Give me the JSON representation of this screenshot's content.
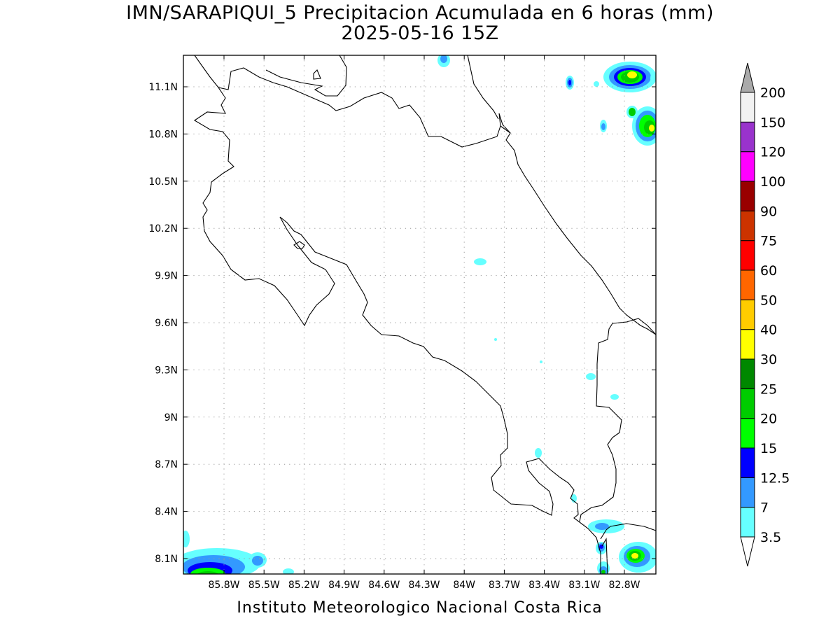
{
  "title": {
    "line1": "IMN/SARAPIQUI_5 Precipitacion Acumulada en 6 horas (mm)",
    "line2": "2025-05-16 15Z"
  },
  "footer": {
    "credit": "Instituto Meteorologico Nacional Costa Rica"
  },
  "map": {
    "lat_labels": [
      {
        "value": 11.1,
        "label": "11.1N"
      },
      {
        "value": 10.8,
        "label": "10.8N"
      },
      {
        "value": 10.5,
        "label": "10.5N"
      },
      {
        "value": 10.2,
        "label": "10.2N"
      },
      {
        "value": 9.9,
        "label": "9.9N"
      },
      {
        "value": 9.6,
        "label": "9.6N"
      },
      {
        "value": 9.3,
        "label": "9.3N"
      },
      {
        "value": 9.0,
        "label": "9N"
      },
      {
        "value": 8.7,
        "label": "8.7N"
      },
      {
        "value": 8.4,
        "label": "8.4N"
      },
      {
        "value": 8.1,
        "label": "8.1N"
      }
    ],
    "lon_labels": [
      {
        "value": -85.8,
        "label": "85.8W"
      },
      {
        "value": -85.5,
        "label": "85.5W"
      },
      {
        "value": -85.2,
        "label": "85.2W"
      },
      {
        "value": -84.9,
        "label": "84.9W"
      },
      {
        "value": -84.6,
        "label": "84.6W"
      },
      {
        "value": -84.3,
        "label": "84.3W"
      },
      {
        "value": -84.0,
        "label": "84W"
      },
      {
        "value": -83.7,
        "label": "83.7W"
      },
      {
        "value": -83.4,
        "label": "83.4W"
      },
      {
        "value": -83.1,
        "label": "83.1W"
      },
      {
        "value": -82.8,
        "label": "82.8W"
      }
    ]
  },
  "legend": {
    "unit": "mm",
    "levels": [
      {
        "label": "3.5",
        "color": "#66ffff"
      },
      {
        "label": "7",
        "color": "#3399ff"
      },
      {
        "label": "12.5",
        "color": "#0000ff"
      },
      {
        "label": "15",
        "color": "#00ff00"
      },
      {
        "label": "20",
        "color": "#00cc00"
      },
      {
        "label": "25",
        "color": "#008800"
      },
      {
        "label": "30",
        "color": "#ffff00"
      },
      {
        "label": "40",
        "color": "#ffcc00"
      },
      {
        "label": "50",
        "color": "#ff6600"
      },
      {
        "label": "60",
        "color": "#ff0000"
      },
      {
        "label": "75",
        "color": "#cc3300"
      },
      {
        "label": "90",
        "color": "#990000"
      },
      {
        "label": "100",
        "color": "#ff00ff"
      },
      {
        "label": "120",
        "color": "#9933cc"
      },
      {
        "label": "150",
        "color": "#f2f2f2"
      },
      {
        "label": "200",
        "color": "#aaaaaa"
      }
    ],
    "lower_arrow_color": "#ffffff",
    "upper_arrow_color": "#aaaaaa"
  }
}
